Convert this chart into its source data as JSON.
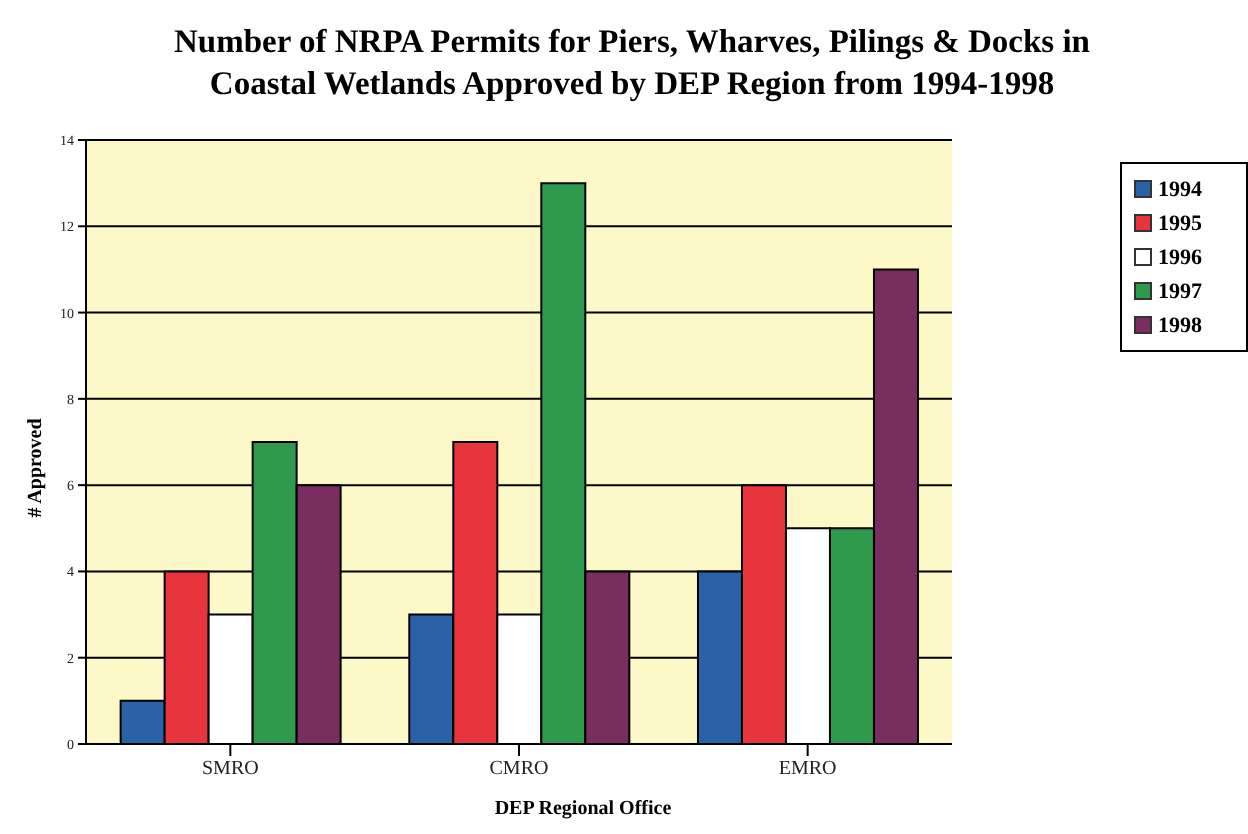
{
  "chart_data": {
    "type": "bar",
    "title": "Number of NRPA Permits for Piers, Wharves, Pilings & Docks in Coastal Wetlands Approved by DEP Region from 1994-1998",
    "xlabel": "DEP Regional Office",
    "ylabel": "# Approved",
    "categories": [
      "SMRO",
      "CMRO",
      "EMRO"
    ],
    "series": [
      {
        "name": "1994",
        "color": "#2a62a8",
        "values": [
          1,
          3,
          4
        ]
      },
      {
        "name": "1995",
        "color": "#e8343c",
        "values": [
          4,
          7,
          6
        ]
      },
      {
        "name": "1996",
        "color": "#ffffff",
        "values": [
          3,
          3,
          5
        ]
      },
      {
        "name": "1997",
        "color": "#2f9a4c",
        "values": [
          7,
          13,
          5
        ]
      },
      {
        "name": "1998",
        "color": "#7a2e60",
        "values": [
          6,
          4,
          11
        ]
      }
    ],
    "ylim": [
      0,
      14
    ],
    "yticks": [
      0,
      2,
      4,
      6,
      8,
      10,
      12,
      14
    ],
    "grid": "y",
    "legend": "top right"
  }
}
